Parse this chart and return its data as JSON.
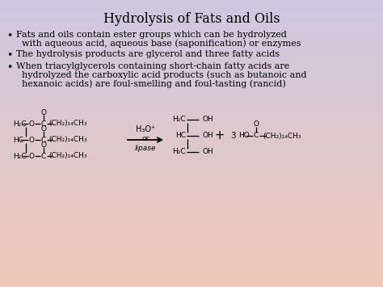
{
  "title": "Hydrolysis of Fats and Oils",
  "bullet1_line1": "Fats and oils contain ester groups which can be hydrolyzed",
  "bullet1_line2": "  with aqueous acid, aqueous base (saponification) or enzymes",
  "bullet2": "The hydrolysis products are glycerol and three fatty acids",
  "bullet3_line1": "When triacylglycerols containing short-chain fatty acids are",
  "bullet3_line2": "  hydrolyzed the carboxylic acid products (such as butanoic and",
  "bullet3_line3": "  hexanoic acids) are foul-smelling and foul-tasting (rancid)",
  "bg_top_color": "#cdc8e0",
  "bg_bottom_color": "#f0c8b8",
  "title_color": "#000000",
  "text_color": "#000000",
  "title_fontsize": 11.5,
  "bullet_fontsize": 8.0,
  "chem_fontsize": 6.5
}
